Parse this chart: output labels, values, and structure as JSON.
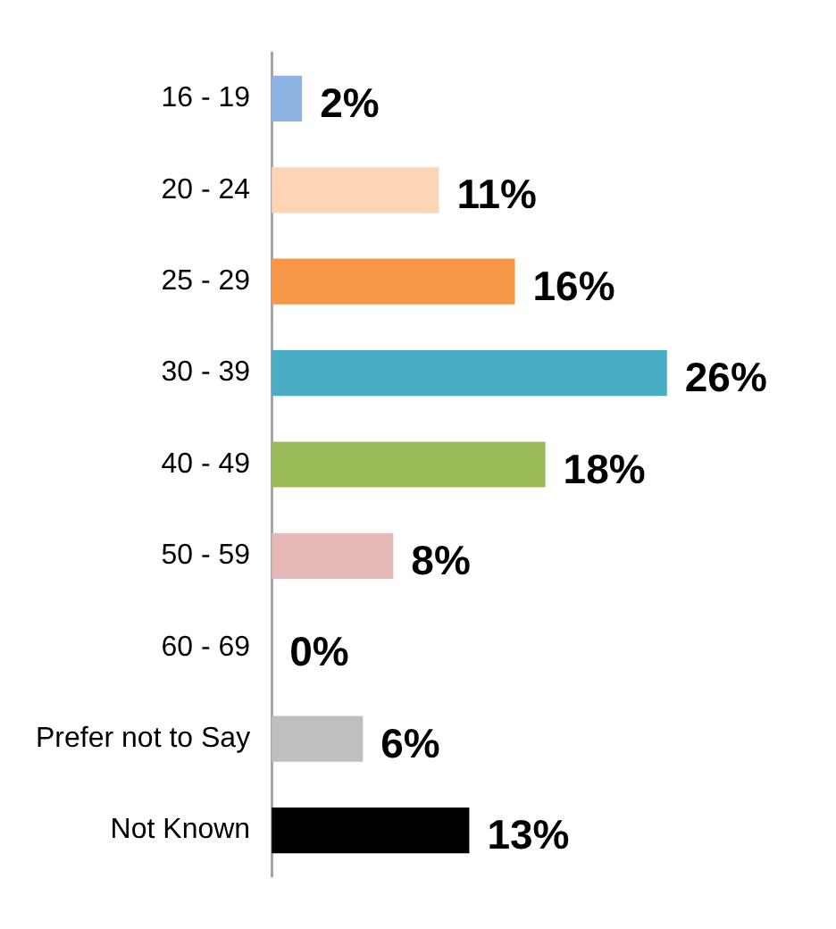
{
  "chart_data": {
    "type": "bar",
    "orientation": "horizontal",
    "categories": [
      "16 - 19",
      "20 - 24",
      "25 - 29",
      "30 - 39",
      "40 - 49",
      "50 - 59",
      "60 - 69",
      "Prefer not to Say",
      "Not Known"
    ],
    "values": [
      2,
      11,
      16,
      26,
      18,
      8,
      0,
      6,
      13
    ],
    "colors": [
      "#8db3e2",
      "#fbd5b5",
      "#f79646",
      "#4bacc6",
      "#9bbb59",
      "#e6b9b8",
      "#c0504d",
      "#bfbfbf",
      "#000000"
    ],
    "value_labels": [
      "2%",
      "11%",
      "16%",
      "26%",
      "18%",
      "8%",
      "0%",
      "6%",
      "13%"
    ],
    "tick_labels": "y",
    "grid": false,
    "legend": false
  }
}
